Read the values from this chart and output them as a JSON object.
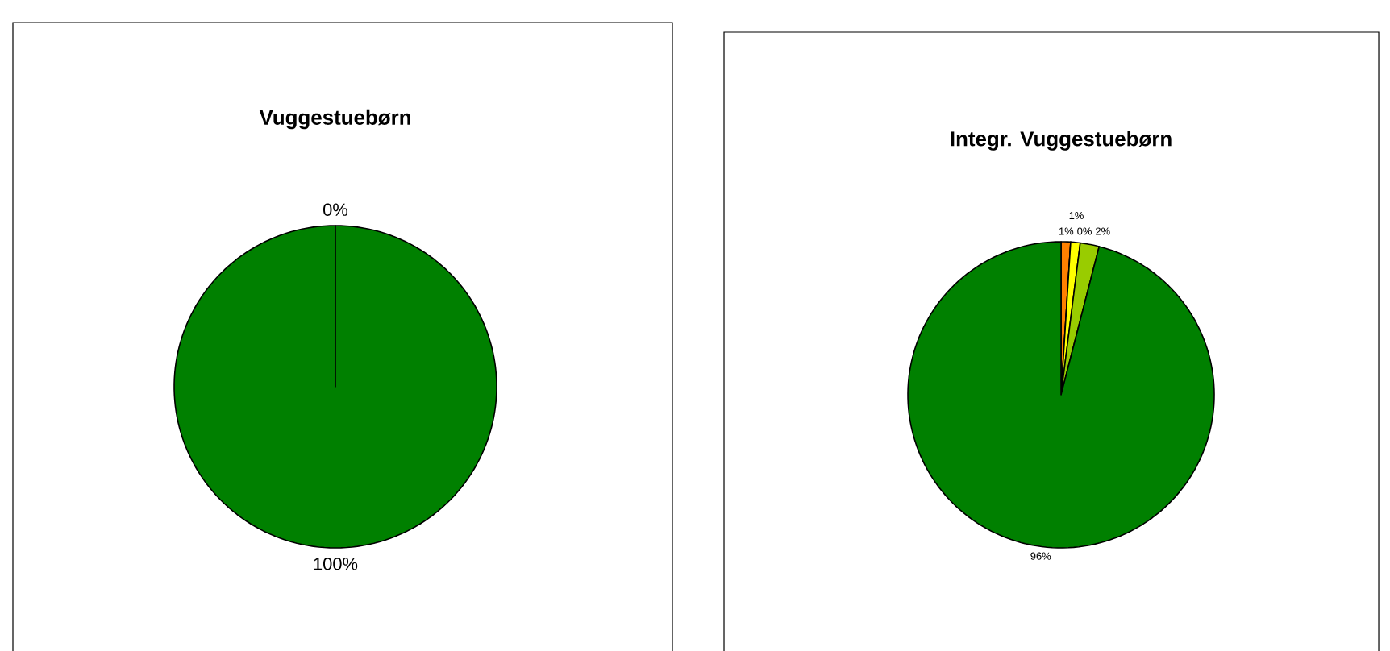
{
  "chart_data": [
    {
      "type": "pie",
      "title": "Vuggestuebørn",
      "categories": [
        null,
        null
      ],
      "values": [
        0,
        100
      ],
      "colors": [
        "#ff0000",
        "#008000"
      ],
      "value_labels": [
        "0%",
        "100%"
      ]
    },
    {
      "type": "pie",
      "title": "Integr. Vuggestuebørn",
      "categories": [
        null,
        null,
        null,
        null,
        null
      ],
      "values": [
        1,
        0,
        1,
        2,
        96
      ],
      "colors": [
        "#ff8000",
        "#800000",
        "#ffff00",
        "#99cc00",
        "#008000"
      ],
      "value_labels": [
        "1%",
        "0%",
        "1%",
        "2%",
        "96%"
      ]
    }
  ]
}
